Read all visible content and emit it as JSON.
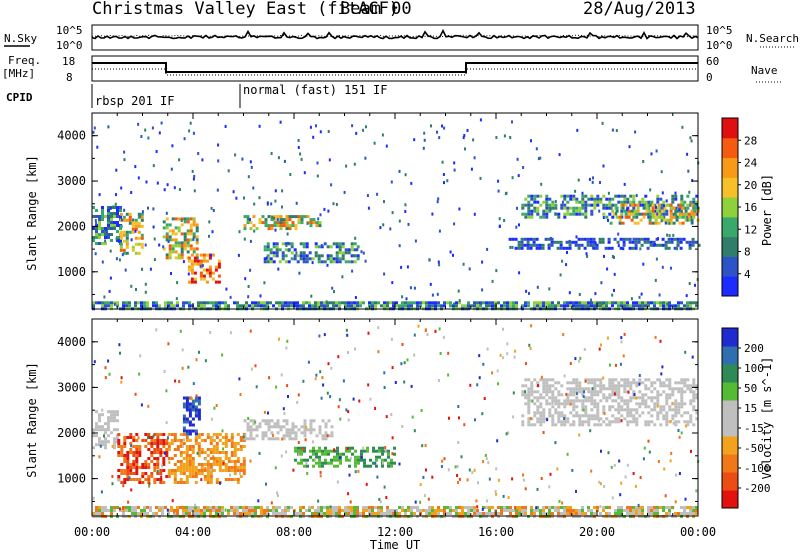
{
  "header": {
    "station": "Christmas Valley East (fitACF)",
    "beam": "Beam 00",
    "date": "28/Aug/2013"
  },
  "colors": {
    "line": "#000000",
    "power_scale": [
      "#1c2cff",
      "#2e52c8",
      "#2f7d6a",
      "#3aa86a",
      "#8fd13a",
      "#f6c02a",
      "#f79a18",
      "#f45a10",
      "#e01010"
    ],
    "velocity_scale": [
      "#1f2ad1",
      "#2f6fb0",
      "#2f8a55",
      "#55bb35",
      "#bfbfbf",
      "#bfbfbf",
      "#f2a31d",
      "#f07818",
      "#ec4d12",
      "#e2120f"
    ]
  },
  "params": {
    "nsky_label": "N.Sky",
    "nsky_top": "10^5",
    "nsky_bot": "10^0",
    "nsearch_label": "N.Search",
    "nsearch_top": "10^5",
    "nsearch_bot": "10^0",
    "freq_label": "Freq.",
    "freq_unit": "[MHz]",
    "freq_top": "18",
    "freq_bot": "8",
    "nave_label": "Nave",
    "nave_top": "60",
    "nave_bot": "0",
    "cpid_label": "CPID",
    "cpid_1": "rbsp 201 IF",
    "cpid_2": "normal (fast) 151 IF"
  },
  "chart_data": [
    {
      "type": "heatmap",
      "title": "Power",
      "ylabel": "Slant Range [km]",
      "xlabel": "",
      "colorbar_label": "Power [dB]",
      "colorbar_ticks": [
        "4",
        "8",
        "12",
        "16",
        "20",
        "24",
        "28"
      ],
      "ylim": [
        180,
        4500
      ],
      "yticks": [
        "1000",
        "2000",
        "3000",
        "4000"
      ],
      "x_range_hours": [
        0,
        24
      ],
      "echo_regions": [
        {
          "t": [
            0.0,
            1.1
          ],
          "r": [
            1600,
            2450
          ],
          "level": "medium"
        },
        {
          "t": [
            1.1,
            2.0
          ],
          "r": [
            1400,
            2300
          ],
          "level": "high"
        },
        {
          "t": [
            2.8,
            4.2
          ],
          "r": [
            1300,
            2200
          ],
          "level": "high"
        },
        {
          "t": [
            3.8,
            5.0
          ],
          "r": [
            800,
            1400
          ],
          "level": "very high"
        },
        {
          "t": [
            6.0,
            9.0
          ],
          "r": [
            1950,
            2250
          ],
          "level": "high"
        },
        {
          "t": [
            6.8,
            10.5
          ],
          "r": [
            1250,
            1650
          ],
          "level": "medium"
        },
        {
          "t": [
            17.0,
            24.0
          ],
          "r": [
            2200,
            2700
          ],
          "level": "medium"
        },
        {
          "t": [
            20.5,
            24.0
          ],
          "r": [
            2100,
            2500
          ],
          "level": "high"
        },
        {
          "t": [
            16.5,
            24.0
          ],
          "r": [
            1550,
            1750
          ],
          "level": "low"
        },
        {
          "t": [
            0.0,
            24.0
          ],
          "r": [
            180,
            350
          ],
          "level": "medium"
        }
      ]
    },
    {
      "type": "heatmap",
      "title": "Velocity",
      "ylabel": "Slant Range [km]",
      "xlabel": "Time UT",
      "colorbar_label": "Velocity [m s^-1]",
      "colorbar_ticks": [
        "200",
        "100",
        "50",
        "15",
        "-15",
        "-50",
        "-100",
        "-200"
      ],
      "ylim": [
        180,
        4500
      ],
      "yticks": [
        "1000",
        "2000",
        "3000",
        "4000"
      ],
      "xticks": [
        "00:00",
        "04:00",
        "08:00",
        "12:00",
        "16:00",
        "20:00",
        "00:00"
      ],
      "x_range_hours": [
        0,
        24
      ],
      "echo_regions": [
        {
          "t": [
            0.0,
            1.0
          ],
          "r": [
            1700,
            2500
          ],
          "v": "-15..15"
        },
        {
          "t": [
            1.0,
            3.0
          ],
          "r": [
            900,
            2000
          ],
          "v": "-200..-100"
        },
        {
          "t": [
            3.0,
            6.0
          ],
          "r": [
            900,
            2000
          ],
          "v": "-50"
        },
        {
          "t": [
            3.6,
            4.3
          ],
          "r": [
            2000,
            2800
          ],
          "v": "100..200"
        },
        {
          "t": [
            6.0,
            9.5
          ],
          "r": [
            1900,
            2300
          ],
          "v": "-15..15"
        },
        {
          "t": [
            8.0,
            12.0
          ],
          "r": [
            1250,
            1700
          ],
          "v": "50"
        },
        {
          "t": [
            17.0,
            24.0
          ],
          "r": [
            2200,
            3200
          ],
          "v": "-15..15"
        },
        {
          "t": [
            0.0,
            24.0
          ],
          "r": [
            180,
            400
          ],
          "v": "-50..15"
        }
      ]
    }
  ]
}
